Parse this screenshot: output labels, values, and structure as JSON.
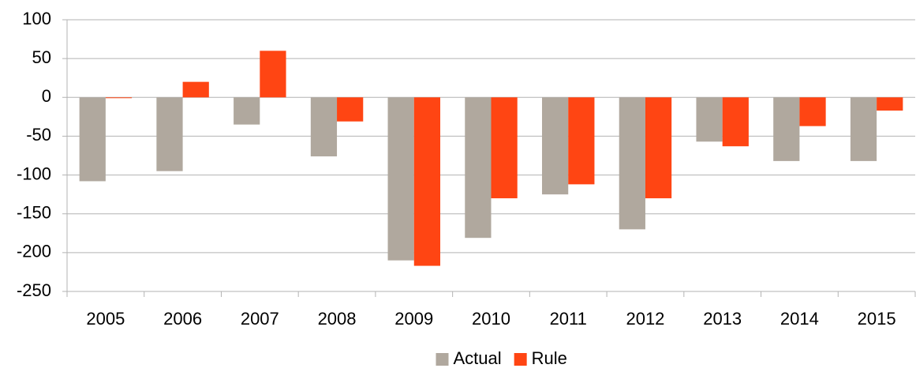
{
  "chart_data": {
    "type": "bar",
    "categories": [
      "2005",
      "2006",
      "2007",
      "2008",
      "2009",
      "2010",
      "2011",
      "2012",
      "2013",
      "2014",
      "2015"
    ],
    "series": [
      {
        "name": "Actual",
        "color": "#b0a89e",
        "values": [
          -108,
          -95,
          -35,
          -76,
          -210,
          -181,
          -125,
          -170,
          -57,
          -82,
          -82
        ]
      },
      {
        "name": "Rule",
        "color": "#ff4513",
        "values": [
          -1,
          20,
          60,
          -31,
          -217,
          -130,
          -112,
          -130,
          -63,
          -37,
          -17
        ]
      }
    ],
    "ylim": [
      -250,
      100
    ],
    "yticks": [
      -250,
      -200,
      -150,
      -100,
      -50,
      0,
      50,
      100
    ],
    "grid": true,
    "legend": "bottom"
  }
}
